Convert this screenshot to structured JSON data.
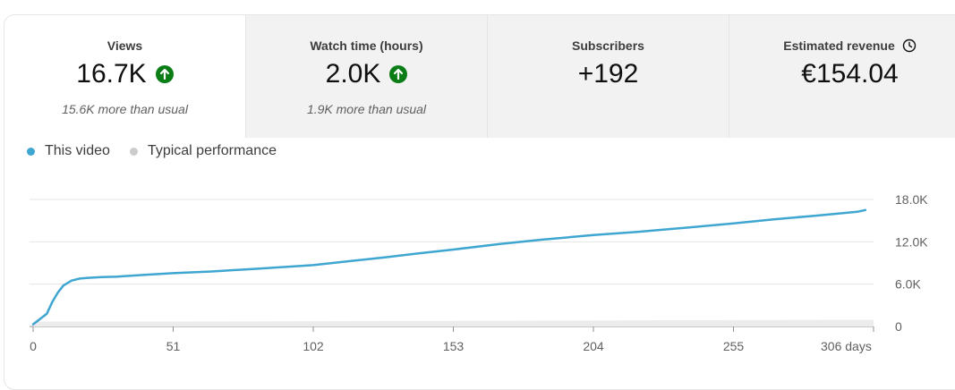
{
  "metrics": [
    {
      "label": "Views",
      "value": "16.7K",
      "sub": "15.6K more than usual",
      "trend_icon": "arrow-up-icon",
      "active": true
    },
    {
      "label": "Watch time (hours)",
      "value": "2.0K",
      "sub": "1.9K more than usual",
      "trend_icon": "arrow-up-icon",
      "active": false
    },
    {
      "label": "Subscribers",
      "value": "+192",
      "sub": "",
      "active": false
    },
    {
      "label": "Estimated revenue",
      "value": "€154.04",
      "sub": "",
      "info_icon": "clock-icon",
      "active": false
    }
  ],
  "legend": [
    {
      "label": "This video",
      "color": "#3ea6d1"
    },
    {
      "label": "Typical performance",
      "color": "#cccccc"
    }
  ],
  "colors": {
    "accent": "#3ea6d1",
    "trend_up": "#0b7d16",
    "typical": "#cccccc",
    "grid": "#e5e5e5",
    "axis_text": "#606060"
  },
  "chart_data": {
    "type": "line",
    "xlim": [
      0,
      306
    ],
    "ylim": [
      0,
      18000
    ],
    "y_ticks": [
      0,
      6000,
      12000,
      18000
    ],
    "y_tick_labels": [
      "0",
      "6.0K",
      "12.0K",
      "18.0K"
    ],
    "x_ticks": [
      0,
      51,
      102,
      153,
      204,
      255,
      306
    ],
    "x_tick_labels": [
      "0",
      "51",
      "102",
      "153",
      "204",
      "255",
      "306 days"
    ],
    "series": [
      {
        "name": "This video",
        "x": [
          0,
          3,
          5,
          7,
          9,
          11,
          14,
          17,
          20,
          25,
          30,
          40,
          51,
          65,
          80,
          102,
          115,
          128,
          140,
          153,
          170,
          185,
          204,
          220,
          235,
          255,
          270,
          285,
          300,
          303
        ],
        "values": [
          300,
          1200,
          1800,
          3500,
          4800,
          5800,
          6500,
          6800,
          6900,
          7000,
          7050,
          7300,
          7550,
          7800,
          8150,
          8700,
          9250,
          9800,
          10350,
          10900,
          11700,
          12300,
          12950,
          13400,
          13900,
          14600,
          15200,
          15700,
          16250,
          16500
        ]
      },
      {
        "name": "Typical performance",
        "x": [
          0,
          51,
          102,
          153,
          204,
          255,
          306
        ],
        "band_low": [
          0,
          0,
          0,
          0,
          0,
          0,
          0
        ],
        "band_high": [
          700,
          700,
          750,
          800,
          850,
          900,
          950
        ]
      }
    ]
  }
}
